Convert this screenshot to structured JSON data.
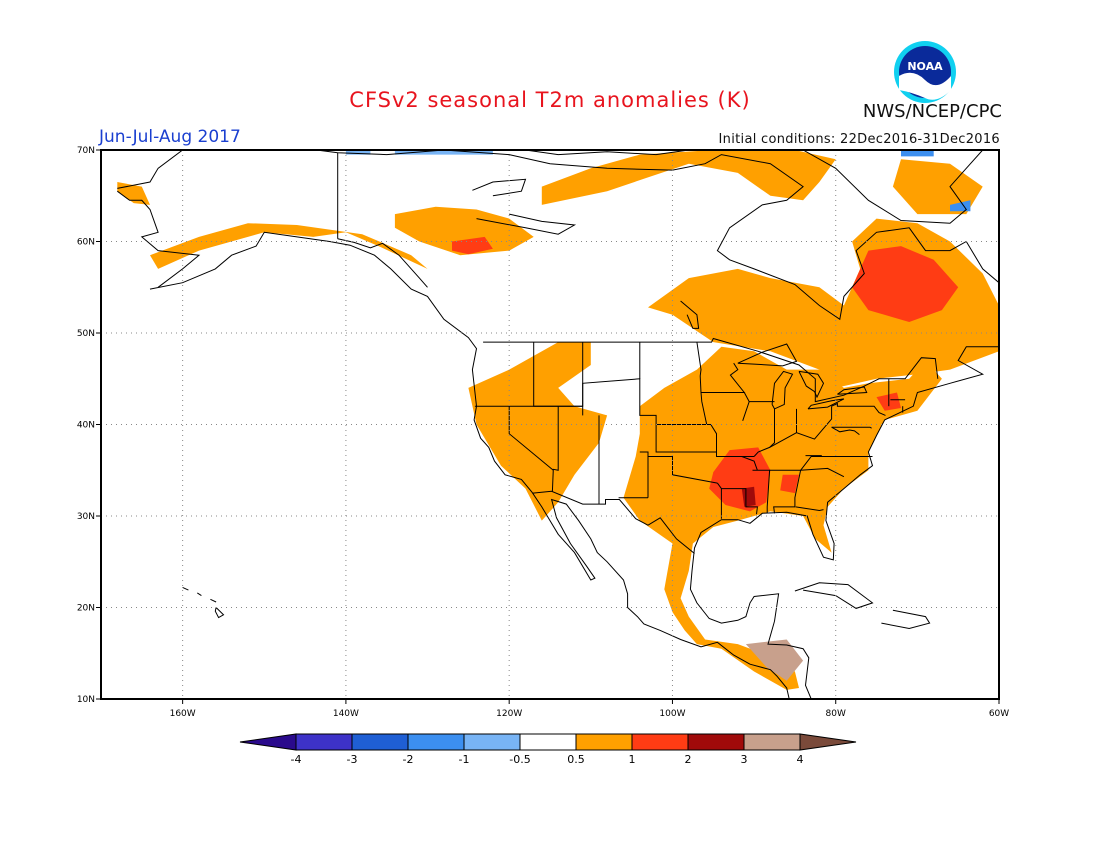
{
  "header": {
    "title": "CFSv2 seasonal T2m anomalies (K)",
    "period": "Jun-Jul-Aug 2017",
    "initial_conditions": "Initial conditions: 22Dec2016-31Dec2016",
    "agency": "NWS/NCEP/CPC",
    "logo_text": "NOAA"
  },
  "map": {
    "lat_labels": [
      "70N",
      "60N",
      "50N",
      "40N",
      "30N",
      "20N",
      "10N"
    ],
    "lon_labels": [
      "160W",
      "140W",
      "120W",
      "100W",
      "80W",
      "60W"
    ],
    "lon_range": [
      -170,
      -60
    ],
    "lat_range": [
      10,
      70
    ]
  },
  "colorbar": {
    "labels": [
      "-4",
      "-3",
      "-2",
      "-1",
      "-0.5",
      "0.5",
      "1",
      "2",
      "3",
      "4"
    ],
    "colors": {
      "lt_-4": "#2a0a8c",
      "-4_-3": "#3d32c8",
      "-3_-2": "#1f5fd4",
      "-2_-1": "#3c8ff0",
      "-1_-0.5": "#78b4f5",
      "-0.5_0.5": "#ffffff",
      "0.5_1": "#ffa000",
      "1_2": "#ff3c14",
      "2_3": "#a00a0a",
      "3_4": "#c8a08c",
      "gt_4": "#7a4a3a"
    }
  }
}
